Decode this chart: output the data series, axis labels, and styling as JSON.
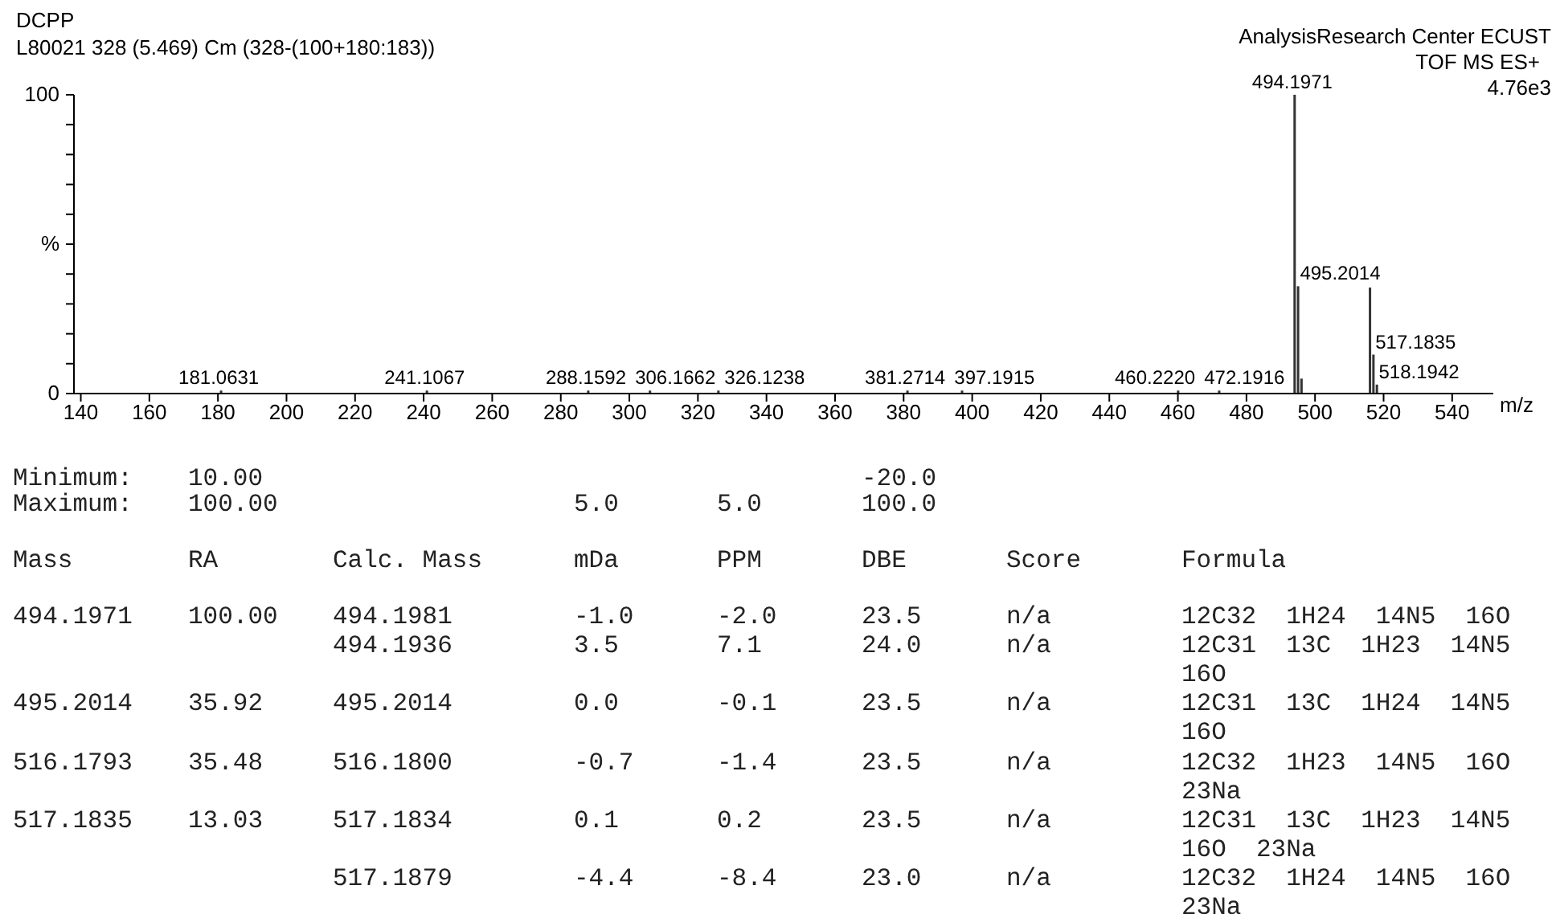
{
  "chart_data": {
    "type": "bar",
    "title": "DCPP",
    "subtitle": "L80021 328 (5.469) Cm (328-(100+180:183))",
    "xlabel": "m/z",
    "x": [
      181.0631,
      241.1067,
      288.1592,
      306.1662,
      326.1238,
      381.2714,
      397.1915,
      460.222,
      472.1916,
      494.1971,
      495.2014,
      496.2,
      516.1793,
      517.1835,
      518.1942
    ],
    "values": [
      1,
      1,
      1,
      1,
      1,
      1,
      1,
      1,
      1,
      100,
      35.92,
      5,
      35.48,
      13.03,
      3
    ],
    "color": "#333333",
    "xlim": [
      138,
      552
    ],
    "xticks": [
      140,
      160,
      180,
      200,
      220,
      240,
      260,
      280,
      300,
      320,
      340,
      360,
      380,
      400,
      420,
      440,
      460,
      480,
      500,
      520,
      540
    ],
    "ylim": [
      0,
      100
    ],
    "yticks": [
      0,
      {
        "value": 10,
        "label": null
      },
      {
        "value": 20,
        "label": null
      },
      {
        "value": 30,
        "label": null
      },
      {
        "value": 40,
        "label": null
      },
      {
        "value": 50,
        "label": "%"
      },
      {
        "value": 60,
        "label": null
      },
      {
        "value": 70,
        "label": null
      },
      {
        "value": 80,
        "label": null
      },
      {
        "value": 90,
        "label": null
      },
      100
    ],
    "annotations": [
      "AnalysisResearch Center ECUST",
      "TOF MS ES+",
      "4.76e3",
      {
        "text": "181.0631",
        "x": 181.0631,
        "y": 1
      },
      {
        "text": "241.1067",
        "x": 241.1067,
        "y": 1
      },
      {
        "text": "288.1592",
        "x": 288.1592,
        "y": 1
      },
      {
        "text": "306.1662",
        "x": 306.1662,
        "y": 1
      },
      {
        "text": "326.1238",
        "x": 326.1238,
        "y": 1
      },
      {
        "text": "381.2714",
        "x": 381.2714,
        "y": 1
      },
      {
        "text": "397.1915",
        "x": 397.1915,
        "y": 1
      },
      {
        "text": "460.2220",
        "x": 460.222,
        "y": 1
      },
      {
        "text": "472.1916",
        "x": 472.1916,
        "y": 1
      },
      {
        "text": "494.1971",
        "x": 494.1971,
        "y": 100
      },
      {
        "text": "495.2014",
        "x": 495.2014,
        "y": 35.92
      },
      {
        "text": "517.1835",
        "x": 517.1835,
        "y": 13.03
      },
      {
        "text": "518.1942",
        "x": 518.1942,
        "y": 3
      },
      "Minimum:\t10.00\t\t\t\t-20.0",
      "Maximum:\t100.00\t\t5.0\t5.0\t100.0",
      "Mass\tRA\tCalc. Mass\tmDa\tPPM\tDBE\tScore\tFormula",
      "494.1971\t100.00\t494.1981\t-1.0\t-2.0\t23.5\tn/a\t12C32  1H24  14N5  16O",
      "\t\t494.1936\t3.5\t7.1\t24.0\tn/a\t12C31  13C  1H23  14N5",
      "\t\t\t\t\t\t\t16O",
      "495.2014\t35.92\t495.2014\t0.0\t-0.1\t23.5\tn/a\t12C31  13C  1H24  14N5",
      "\t\t\t\t\t\t\t16O",
      "516.1793\t35.48\t516.1800\t-0.7\t-1.4\t23.5\tn/a\t12C32  1H23  14N5  16O",
      "\t\t\t\t\t\t\t23Na",
      "517.1835\t13.03\t517.1834\t0.1\t0.2\t23.5\tn/a\t12C31  13C  1H23  14N5",
      "\t\t\t\t\t\t\t16O  23Na",
      "\t\t517.1879\t-4.4\t-8.4\t23.0\tn/a\t12C32  1H24  14N5  16O",
      "\t\t\t\t\t\t\t23Na"
    ]
  }
}
